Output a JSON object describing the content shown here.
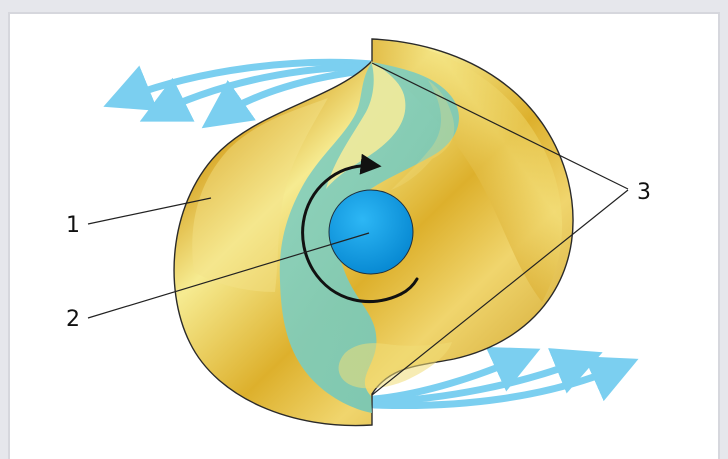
{
  "diagram": {
    "labels": {
      "part_1": "1",
      "part_2": "2",
      "part_3": "3"
    },
    "colors": {
      "rotor": "#d8ad24",
      "fluid": "#86cfbd",
      "shaft": "#0b9ae0",
      "flow_arrows": "#7bcff0",
      "outline": "#2a2a2a",
      "leader_lines": "#222222"
    }
  }
}
